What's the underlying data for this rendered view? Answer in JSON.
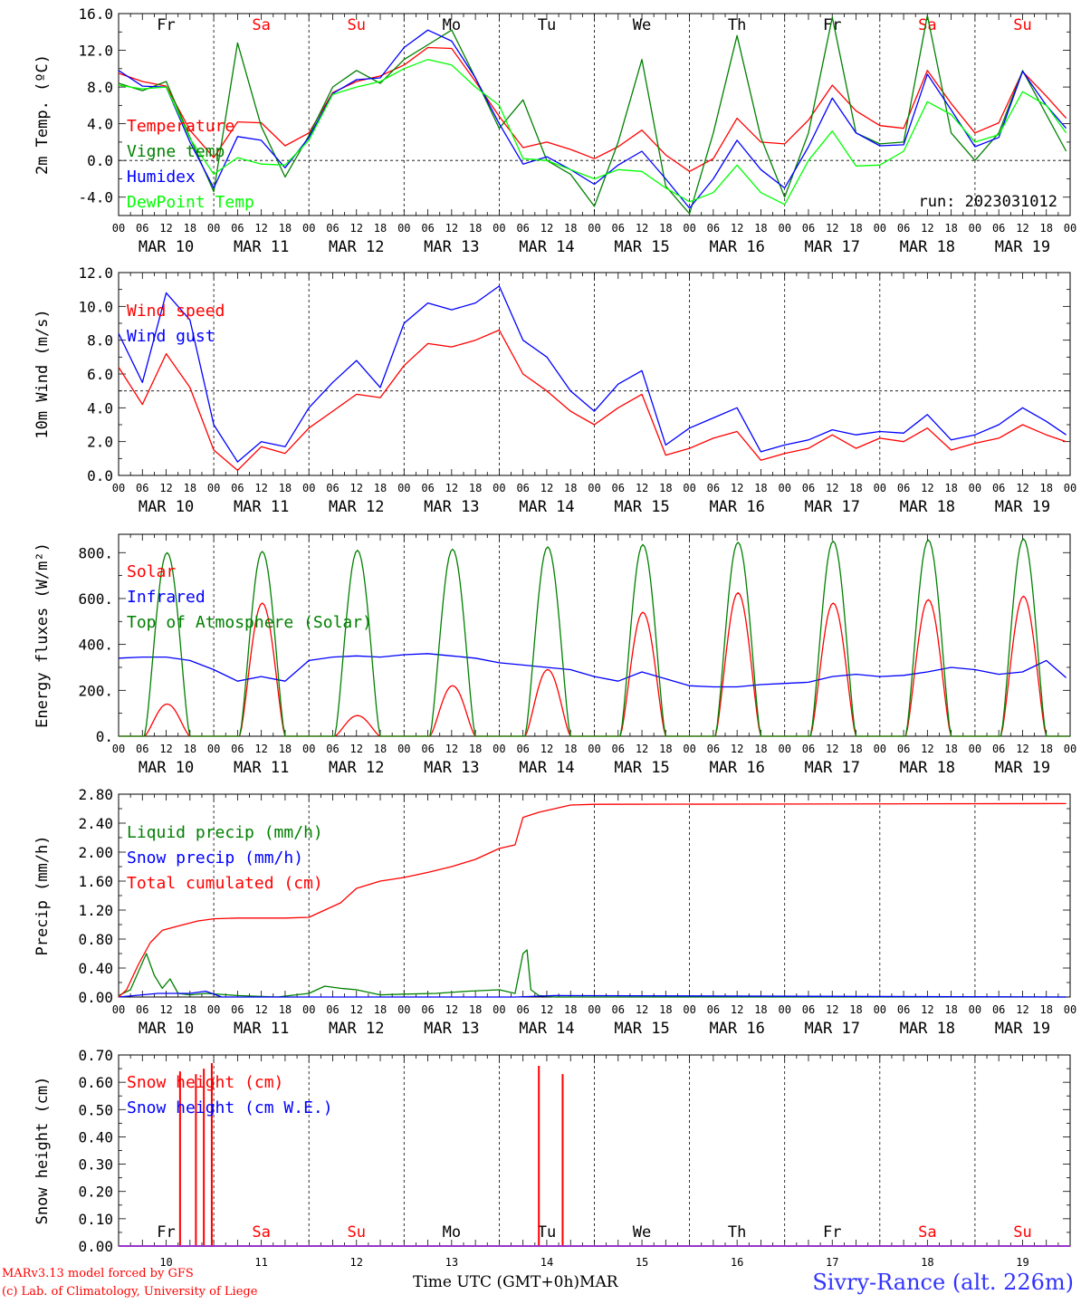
{
  "footer": {
    "credit_line1": "MARv3.13 model forced by GFS",
    "credit_line2": "(c) Lab. of Climatology, University of Liege",
    "time_label": "Time UTC (GMT+0h)",
    "month_label": "MAR",
    "station": "Sivry-Rance (alt. 226m)"
  },
  "run_label": "run: 2023031012",
  "hour_ticks": [
    "00",
    "06",
    "12",
    "18"
  ],
  "date_labels": [
    "MAR 10",
    "MAR 11",
    "MAR 12",
    "MAR 13",
    "MAR 14",
    "MAR 15",
    "MAR 16",
    "MAR 17",
    "MAR 18",
    "MAR 19"
  ],
  "day_numbers": [
    "10",
    "11",
    "12",
    "13",
    "14",
    "15",
    "16",
    "17",
    "18",
    "19"
  ],
  "weekdays": [
    {
      "label": "Fr",
      "color": "#000000"
    },
    {
      "label": "Sa",
      "color": "#ff0000"
    },
    {
      "label": "Su",
      "color": "#ff0000"
    },
    {
      "label": "Mo",
      "color": "#000000"
    },
    {
      "label": "Tu",
      "color": "#000000"
    },
    {
      "label": "We",
      "color": "#000000"
    },
    {
      "label": "Th",
      "color": "#000000"
    },
    {
      "label": "Fr",
      "color": "#000000"
    },
    {
      "label": "Sa",
      "color": "#ff0000"
    },
    {
      "label": "Su",
      "color": "#ff0000"
    }
  ],
  "chart_data": [
    {
      "type": "line",
      "ylabel": "2m Temp. (ºC)",
      "ylim": [
        -6,
        16
      ],
      "yticks": [
        "16.0",
        "12.0",
        "8.0",
        "4.0",
        "0.0",
        "-4.0"
      ],
      "ytick_values": [
        16,
        12,
        8,
        4,
        0,
        -4
      ],
      "ref_line": 0,
      "x_unit": "hours since MAR 10 00 UTC",
      "series": [
        {
          "name": "Temperature",
          "color": "#ff0000",
          "x": [
            0,
            6,
            12,
            18,
            24,
            30,
            36,
            42,
            48,
            54,
            60,
            66,
            72,
            78,
            84,
            90,
            96,
            102,
            108,
            114,
            120,
            126,
            132,
            138,
            144,
            150,
            156,
            162,
            168,
            174,
            180,
            186,
            192,
            198,
            204,
            210,
            216,
            222,
            228,
            234,
            239
          ],
          "y": [
            9.5,
            8.6,
            8.1,
            3.3,
            0.3,
            4.2,
            4.1,
            1.6,
            3.0,
            7.4,
            8.6,
            9.2,
            10.4,
            12.3,
            12.2,
            8.6,
            4.8,
            1.4,
            2.0,
            1.2,
            0.2,
            1.5,
            3.3,
            0.6,
            -1.2,
            0.2,
            4.6,
            2.0,
            1.8,
            4.4,
            8.2,
            5.4,
            3.8,
            3.5,
            9.8,
            6.2,
            3.0,
            4.1,
            9.7,
            7.0,
            4.6
          ]
        },
        {
          "name": "Vigne temp",
          "color": "#008000",
          "x": [
            0,
            6,
            12,
            18,
            24,
            30,
            36,
            42,
            48,
            54,
            60,
            66,
            72,
            78,
            84,
            90,
            96,
            102,
            108,
            114,
            120,
            126,
            132,
            138,
            144,
            150,
            156,
            162,
            168,
            174,
            180,
            186,
            192,
            198,
            204,
            210,
            216,
            222,
            228,
            234,
            239
          ],
          "y": [
            8.4,
            7.6,
            8.6,
            2.5,
            -3.4,
            12.8,
            3.7,
            -1.8,
            2.7,
            8.0,
            9.8,
            8.4,
            11.0,
            12.6,
            14.2,
            9.0,
            3.5,
            6.6,
            0.0,
            -1.5,
            -5.0,
            2.0,
            11.0,
            -2.8,
            -5.8,
            3.0,
            13.6,
            2.5,
            -4.0,
            3.0,
            15.6,
            3.0,
            1.8,
            2.0,
            15.8,
            3.0,
            0.0,
            3.0,
            9.8,
            5.0,
            1.0
          ]
        },
        {
          "name": "Humidex",
          "color": "#0000ff",
          "x": [
            0,
            6,
            12,
            18,
            24,
            30,
            36,
            42,
            48,
            54,
            60,
            66,
            72,
            78,
            84,
            90,
            96,
            102,
            108,
            114,
            120,
            126,
            132,
            138,
            144,
            150,
            156,
            162,
            168,
            174,
            180,
            186,
            192,
            198,
            204,
            210,
            216,
            222,
            228,
            234,
            239
          ],
          "y": [
            9.8,
            8.1,
            8.0,
            2.0,
            -3.0,
            2.6,
            2.2,
            -0.8,
            2.5,
            7.3,
            8.8,
            9.0,
            12.3,
            14.2,
            13.0,
            9.0,
            4.0,
            -0.4,
            0.4,
            -1.0,
            -2.6,
            -0.5,
            1.0,
            -2.0,
            -5.2,
            -2.0,
            2.2,
            -1.0,
            -3.0,
            1.5,
            6.8,
            3.0,
            1.6,
            1.7,
            9.4,
            5.5,
            1.5,
            2.5,
            9.7,
            6.0,
            3.5
          ]
        },
        {
          "name": "DewPoint Temp",
          "color": "#00ff00",
          "x": [
            0,
            6,
            12,
            18,
            24,
            30,
            36,
            42,
            48,
            54,
            60,
            66,
            72,
            78,
            84,
            90,
            96,
            102,
            108,
            114,
            120,
            126,
            132,
            138,
            144,
            150,
            156,
            162,
            168,
            174,
            180,
            186,
            192,
            198,
            204,
            210,
            216,
            222,
            228,
            234,
            239
          ],
          "y": [
            8.2,
            7.8,
            8.0,
            2.4,
            -1.5,
            0.3,
            -0.4,
            -0.5,
            2.2,
            7.2,
            8.0,
            8.6,
            10.0,
            11.0,
            10.4,
            8.0,
            6.0,
            0.2,
            0.0,
            -1.0,
            -2.0,
            -1.0,
            -1.2,
            -3.0,
            -4.5,
            -3.5,
            -0.5,
            -3.5,
            -4.8,
            0.0,
            3.2,
            -0.6,
            -0.5,
            1.0,
            6.4,
            5.0,
            2.0,
            2.8,
            7.5,
            6.0,
            3.0
          ]
        }
      ]
    },
    {
      "type": "line",
      "ylabel": "10m Wind (m/s)",
      "ylim": [
        0,
        12
      ],
      "yticks": [
        "12.0",
        "10.0",
        "8.0",
        "6.0",
        "4.0",
        "2.0",
        "0.0"
      ],
      "ytick_values": [
        12,
        10,
        8,
        6,
        4,
        2,
        0
      ],
      "ref_line": 5,
      "x_unit": "hours since MAR 10 00 UTC",
      "series": [
        {
          "name": "Wind speed",
          "color": "#ff0000",
          "x": [
            0,
            6,
            12,
            18,
            24,
            30,
            36,
            42,
            48,
            54,
            60,
            66,
            72,
            78,
            84,
            90,
            96,
            102,
            108,
            114,
            120,
            126,
            132,
            138,
            144,
            150,
            156,
            162,
            168,
            174,
            180,
            186,
            192,
            198,
            204,
            210,
            216,
            222,
            228,
            234,
            239
          ],
          "y": [
            6.4,
            4.2,
            7.2,
            5.2,
            1.5,
            0.3,
            1.7,
            1.3,
            2.8,
            3.8,
            4.8,
            4.6,
            6.5,
            7.8,
            7.6,
            8.0,
            8.6,
            6.0,
            5.0,
            3.8,
            3.0,
            4.0,
            4.8,
            1.2,
            1.6,
            2.2,
            2.6,
            0.9,
            1.3,
            1.6,
            2.4,
            1.6,
            2.2,
            2.0,
            2.8,
            1.5,
            1.9,
            2.2,
            3.0,
            2.4,
            2.0
          ]
        },
        {
          "name": "Wind gust",
          "color": "#0000ff",
          "x": [
            0,
            6,
            12,
            18,
            24,
            30,
            36,
            42,
            48,
            54,
            60,
            66,
            72,
            78,
            84,
            90,
            96,
            102,
            108,
            114,
            120,
            126,
            132,
            138,
            144,
            150,
            156,
            162,
            168,
            174,
            180,
            186,
            192,
            198,
            204,
            210,
            216,
            222,
            228,
            234,
            239
          ],
          "y": [
            8.4,
            5.5,
            10.8,
            9.2,
            3.0,
            0.8,
            2.0,
            1.7,
            4.0,
            5.5,
            6.8,
            5.2,
            9.0,
            10.2,
            9.8,
            10.2,
            11.2,
            8.0,
            7.0,
            5.0,
            3.8,
            5.4,
            6.2,
            1.8,
            2.8,
            3.4,
            4.0,
            1.4,
            1.8,
            2.1,
            2.7,
            2.4,
            2.6,
            2.5,
            3.6,
            2.1,
            2.4,
            3.0,
            4.0,
            3.2,
            2.4
          ]
        }
      ]
    },
    {
      "type": "line",
      "ylabel": "Energy fluxes (W/m²)",
      "ylim": [
        0,
        880
      ],
      "yticks": [
        "800.",
        "600.",
        "400.",
        "200.",
        "0."
      ],
      "ytick_values": [
        800,
        600,
        400,
        200,
        0
      ],
      "x_unit": "hours since MAR 10 00 UTC",
      "daily_series": {
        "sunrise_hour": 6.5,
        "sunset_hour": 18.0
      },
      "series": [
        {
          "name": "Solar",
          "color": "#ff0000",
          "daily_peaks": [
            140,
            580,
            90,
            220,
            290,
            540,
            625,
            580,
            595,
            610
          ]
        },
        {
          "name": "Infrared",
          "color": "#0000ff",
          "x": [
            0,
            6,
            12,
            18,
            24,
            30,
            36,
            42,
            48,
            54,
            60,
            66,
            72,
            78,
            84,
            90,
            96,
            102,
            108,
            114,
            120,
            126,
            132,
            138,
            144,
            150,
            156,
            162,
            168,
            174,
            180,
            186,
            192,
            198,
            204,
            210,
            216,
            222,
            228,
            234,
            239
          ],
          "y": [
            340,
            345,
            345,
            330,
            290,
            240,
            260,
            240,
            330,
            345,
            350,
            345,
            355,
            360,
            350,
            340,
            320,
            310,
            300,
            290,
            260,
            240,
            280,
            250,
            220,
            215,
            215,
            225,
            230,
            235,
            260,
            270,
            260,
            265,
            280,
            300,
            290,
            270,
            280,
            330,
            255
          ]
        },
        {
          "name": "Top of Atmosphere (Solar)",
          "color": "#008000",
          "daily_peaks": [
            800,
            805,
            810,
            815,
            825,
            835,
            845,
            850,
            855,
            860
          ]
        }
      ]
    },
    {
      "type": "line",
      "ylabel": "Precip (mm/h)",
      "ylim": [
        0,
        2.8
      ],
      "yticks": [
        "2.80",
        "2.40",
        "2.00",
        "1.60",
        "1.20",
        "0.80",
        "0.40",
        "0.00"
      ],
      "ytick_values": [
        2.8,
        2.4,
        2.0,
        1.6,
        1.2,
        0.8,
        0.4,
        0.0
      ],
      "x_unit": "hours since MAR 10 00 UTC",
      "series": [
        {
          "name": "Liquid precip (mm/h)",
          "color": "#008000",
          "x": [
            0,
            3,
            5,
            7,
            9,
            11,
            13,
            15,
            18,
            22,
            30,
            40,
            48,
            52,
            56,
            60,
            66,
            72,
            80,
            88,
            96,
            100,
            102,
            103,
            104,
            106,
            110,
            120,
            239
          ],
          "y": [
            0.02,
            0.1,
            0.35,
            0.6,
            0.3,
            0.12,
            0.25,
            0.05,
            0.03,
            0.05,
            0.02,
            0.0,
            0.05,
            0.15,
            0.12,
            0.1,
            0.03,
            0.04,
            0.05,
            0.08,
            0.1,
            0.05,
            0.6,
            0.65,
            0.1,
            0.02,
            0.0,
            0.0,
            0.0
          ]
        },
        {
          "name": "Snow precip (mm/h)",
          "color": "#0000ff",
          "x": [
            0,
            10,
            18,
            22,
            26,
            100,
            110,
            239
          ],
          "y": [
            0.0,
            0.05,
            0.05,
            0.08,
            0.0,
            0.0,
            0.02,
            0.0
          ]
        },
        {
          "name": "Total cumulated (cm)",
          "color": "#ff0000",
          "x": [
            0,
            2,
            5,
            8,
            11,
            15,
            20,
            24,
            30,
            36,
            42,
            48,
            52,
            56,
            60,
            66,
            72,
            78,
            84,
            90,
            96,
            100,
            102,
            106,
            110,
            114,
            120,
            239
          ],
          "y": [
            0.0,
            0.1,
            0.45,
            0.75,
            0.92,
            0.98,
            1.05,
            1.08,
            1.09,
            1.09,
            1.09,
            1.1,
            1.2,
            1.3,
            1.5,
            1.6,
            1.65,
            1.72,
            1.8,
            1.9,
            2.05,
            2.1,
            2.48,
            2.55,
            2.6,
            2.65,
            2.66,
            2.67
          ]
        }
      ]
    },
    {
      "type": "line",
      "ylabel": "Snow height (cm)",
      "ylim": [
        0,
        0.7
      ],
      "yticks": [
        "0.70",
        "0.60",
        "0.50",
        "0.40",
        "0.30",
        "0.20",
        "0.10",
        "0.00"
      ],
      "ytick_values": [
        0.7,
        0.6,
        0.5,
        0.4,
        0.3,
        0.2,
        0.1,
        0.0
      ],
      "x_unit": "hours since MAR 10 00 UTC",
      "series": [
        {
          "name": "Snow height (cm)",
          "color": "#ff0000",
          "spikes": [
            {
              "x": 15.5,
              "y": 0.64
            },
            {
              "x": 19.5,
              "y": 0.63
            },
            {
              "x": 21.5,
              "y": 0.65
            },
            {
              "x": 23.5,
              "y": 0.67
            },
            {
              "x": 106,
              "y": 0.66
            },
            {
              "x": 112,
              "y": 0.63
            }
          ]
        },
        {
          "name": "Snow height (cm W.E.)",
          "color": "#0000ff",
          "spikes": []
        }
      ]
    }
  ]
}
